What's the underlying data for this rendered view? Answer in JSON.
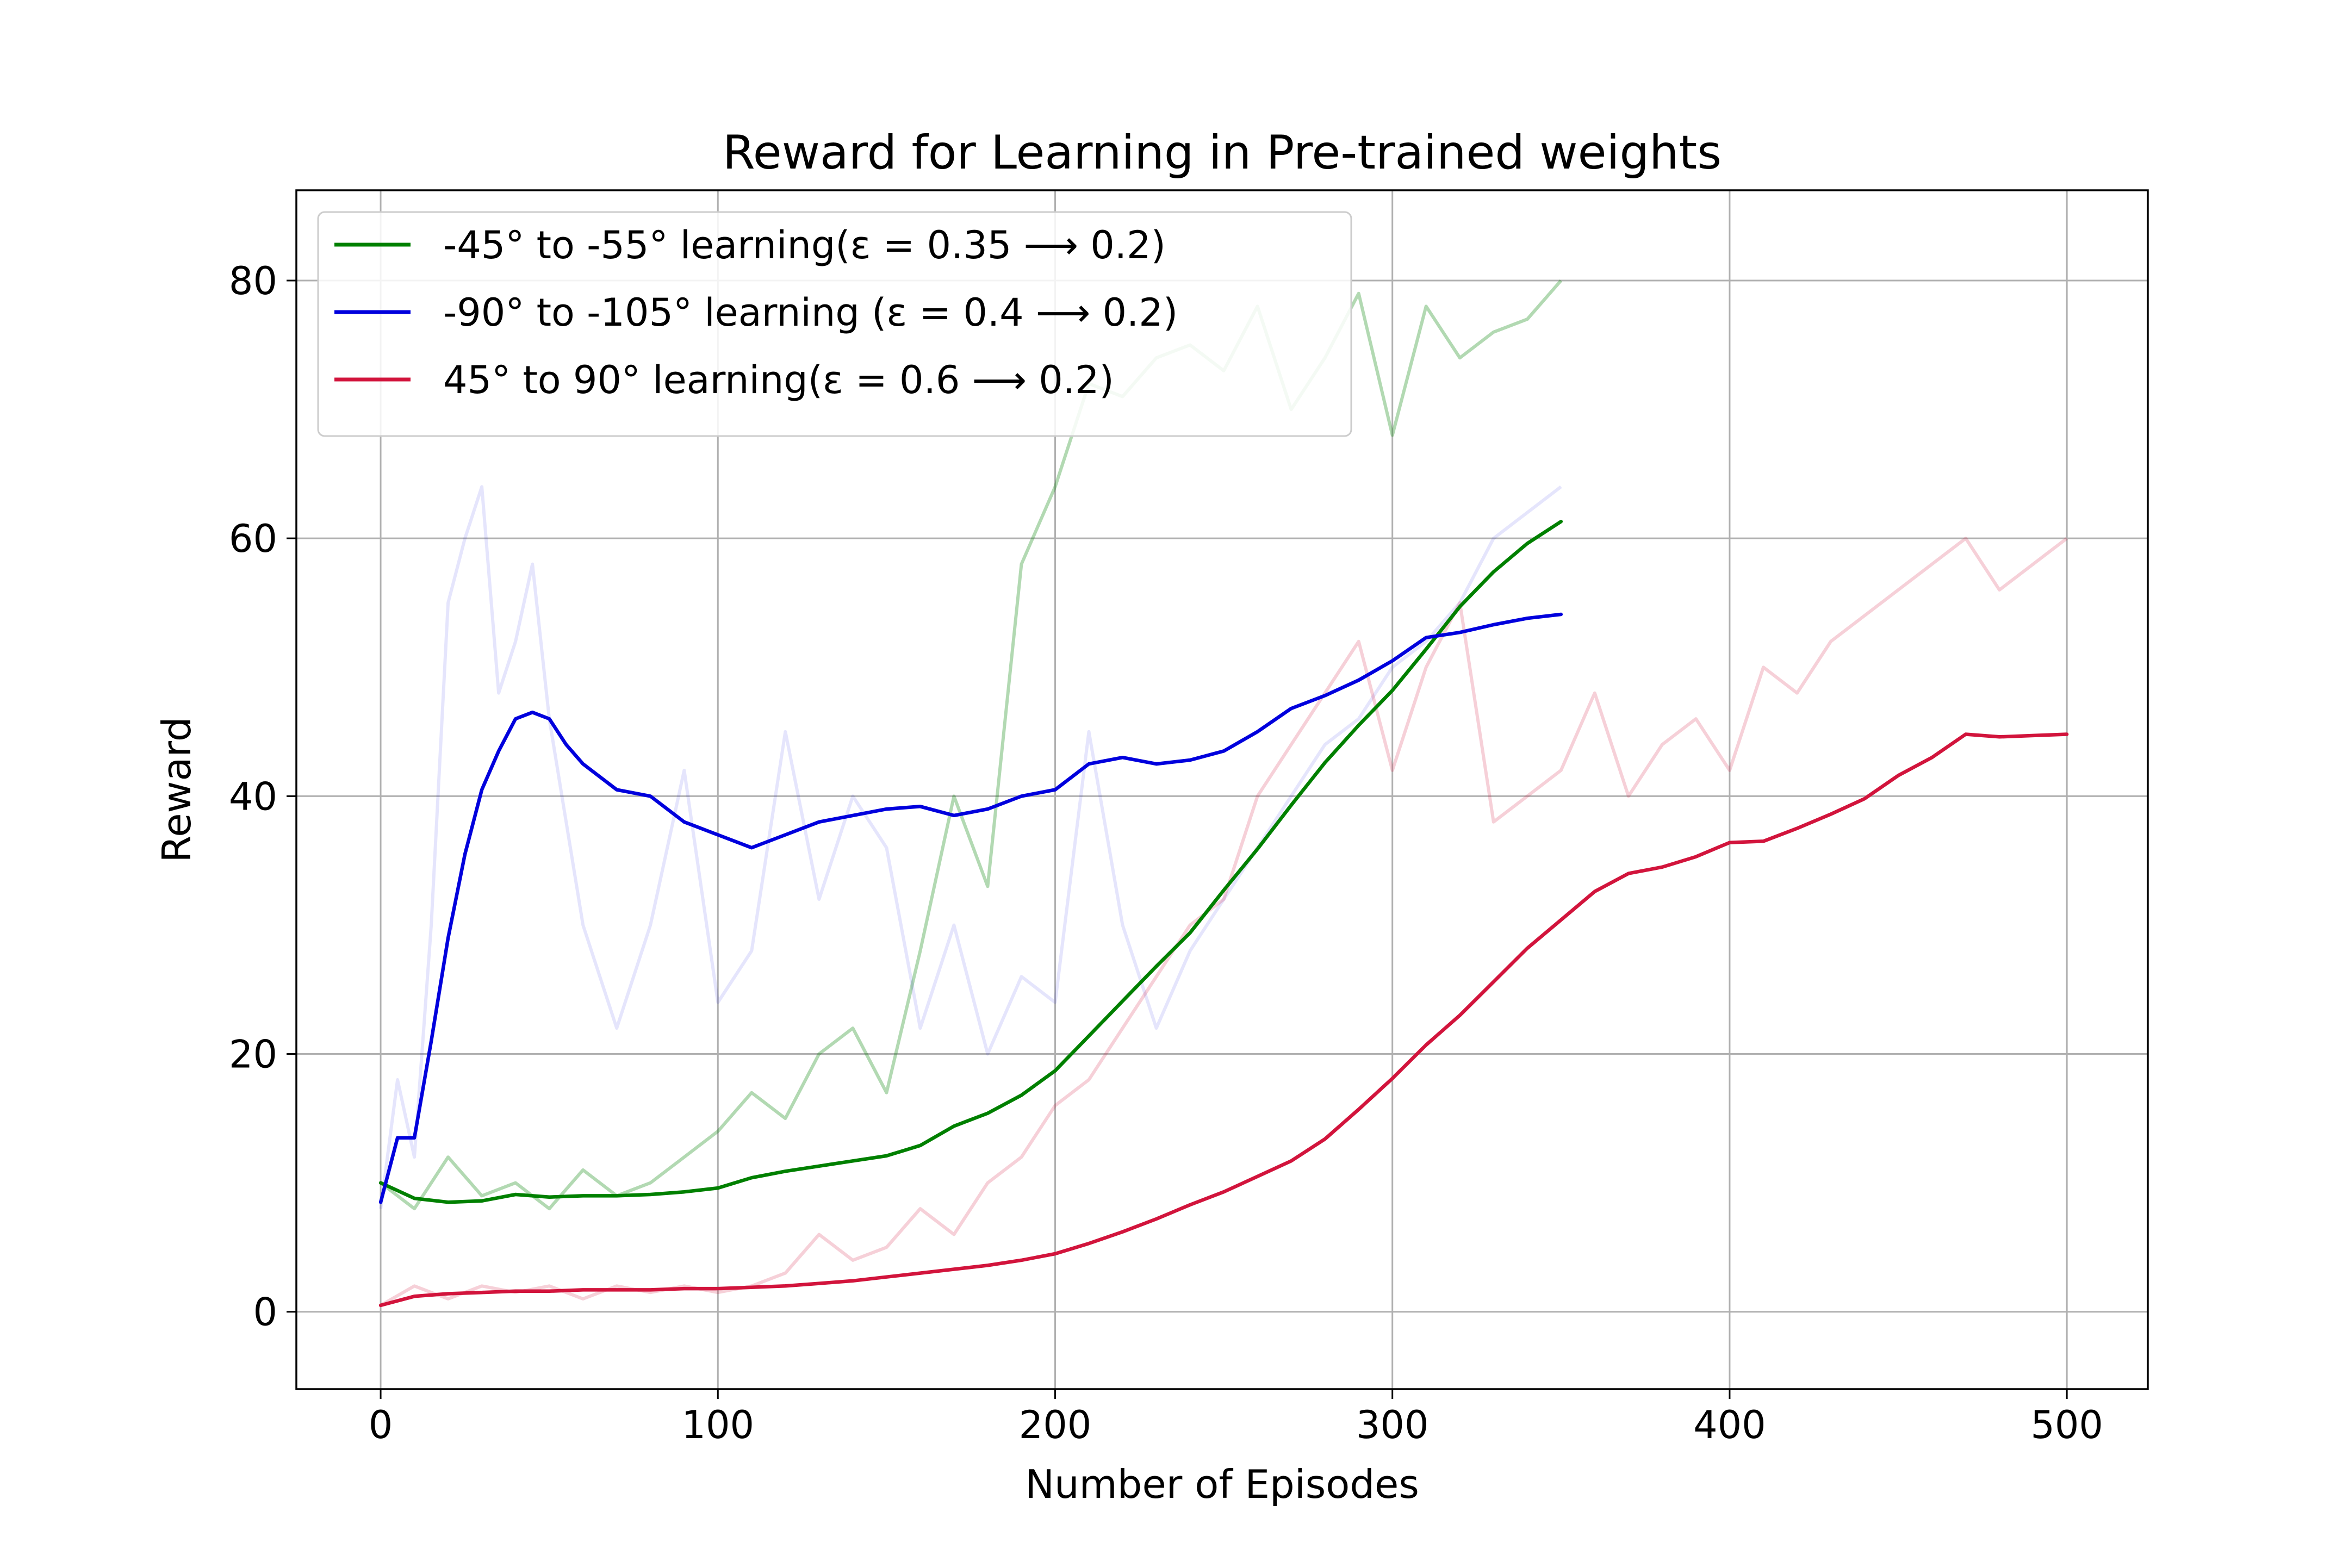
{
  "chart_data": {
    "type": "line",
    "title": "Reward for Learning in Pre-trained weights",
    "xlabel": "Number of Episodes",
    "ylabel": "Reward",
    "xlim": [
      -25,
      524
    ],
    "ylim": [
      -6,
      87
    ],
    "xticks": [
      0,
      100,
      200,
      300,
      400,
      500
    ],
    "yticks": [
      0,
      20,
      40,
      60,
      80
    ],
    "xtick_labels": [
      "0",
      "100",
      "200",
      "300",
      "400",
      "500"
    ],
    "ytick_labels": [
      "0",
      "20",
      "40",
      "60",
      "80"
    ],
    "grid": true,
    "legend_position": "upper-left",
    "series": [
      {
        "name": "-45° to -55° learning(ε = 0.35 ⟶ 0.2)",
        "color": "#008000",
        "raw_alpha": 0.3,
        "x": [
          0,
          10,
          20,
          30,
          40,
          50,
          60,
          70,
          80,
          90,
          100,
          110,
          120,
          130,
          140,
          150,
          160,
          170,
          180,
          190,
          200,
          210,
          220,
          230,
          240,
          250,
          260,
          270,
          280,
          290,
          300,
          310,
          320,
          330,
          340,
          350
        ],
        "values": [
          10,
          8.8,
          8.5,
          8.6,
          9.1,
          8.9,
          9.0,
          9.0,
          9.1,
          9.3,
          9.6,
          10.4,
          10.9,
          11.3,
          11.7,
          12.1,
          12.9,
          14.4,
          15.4,
          16.8,
          18.7,
          21.4,
          24.1,
          26.8,
          29.4,
          32.7,
          35.9,
          39.3,
          42.6,
          45.5,
          48.2,
          51.4,
          54.7,
          57.4,
          59.6,
          61.3
        ],
        "raw_values": [
          10,
          8,
          12,
          9,
          10,
          8,
          11,
          9,
          10,
          12,
          14,
          17,
          15,
          20,
          22,
          17,
          28,
          40,
          33,
          58,
          64,
          72,
          71,
          74,
          75,
          73,
          78,
          70,
          74,
          79,
          68,
          78,
          74,
          76,
          77,
          80
        ]
      },
      {
        "name": "-90° to -105° learning (ε = 0.4 ⟶ 0.2)",
        "color": "#0000dd",
        "raw_alpha": 0.1,
        "x": [
          0,
          5,
          10,
          15,
          20,
          25,
          30,
          35,
          40,
          45,
          50,
          55,
          60,
          70,
          80,
          90,
          100,
          110,
          120,
          130,
          140,
          150,
          160,
          170,
          180,
          190,
          200,
          210,
          220,
          230,
          240,
          250,
          260,
          270,
          280,
          290,
          300,
          310,
          320,
          330,
          340,
          350
        ],
        "values": [
          8.5,
          13.5,
          13.5,
          21,
          29,
          35.5,
          40.5,
          43.5,
          46,
          46.5,
          46,
          44,
          42.5,
          40.5,
          40,
          38,
          37,
          36,
          37,
          38,
          38.5,
          39,
          39.2,
          38.5,
          39,
          40,
          40.5,
          42.5,
          43,
          42.5,
          42.8,
          43.5,
          45,
          46.8,
          47.8,
          49,
          50.5,
          52.3,
          52.7,
          53.3,
          53.8,
          54.1
        ],
        "raw_values": [
          8,
          18,
          12,
          30,
          55,
          60,
          64,
          48,
          52,
          58,
          46,
          38,
          30,
          22,
          30,
          42,
          24,
          28,
          45,
          32,
          40,
          36,
          22,
          30,
          20,
          26,
          24,
          45,
          30,
          22,
          28,
          32,
          36,
          40,
          44,
          46,
          50,
          52,
          55,
          60,
          62,
          64
        ]
      },
      {
        "name": "45° to 90° learning(ε = 0.6 ⟶ 0.2)",
        "color": "#d2143c",
        "raw_alpha": 0.2,
        "x": [
          0,
          10,
          20,
          30,
          40,
          50,
          60,
          70,
          80,
          90,
          100,
          110,
          120,
          130,
          140,
          150,
          160,
          170,
          180,
          190,
          200,
          210,
          220,
          230,
          240,
          250,
          260,
          270,
          280,
          290,
          300,
          310,
          320,
          330,
          340,
          350,
          360,
          370,
          380,
          390,
          400,
          410,
          420,
          430,
          440,
          450,
          460,
          470,
          480,
          490,
          500
        ],
        "values": [
          0.5,
          1.2,
          1.4,
          1.5,
          1.6,
          1.6,
          1.7,
          1.7,
          1.7,
          1.8,
          1.8,
          1.9,
          2.0,
          2.2,
          2.4,
          2.7,
          3.0,
          3.3,
          3.6,
          4.0,
          4.5,
          5.3,
          6.2,
          7.2,
          8.3,
          9.3,
          10.5,
          11.7,
          13.4,
          15.7,
          18.1,
          20.7,
          23.0,
          25.6,
          28.2,
          30.4,
          32.6,
          34.0,
          34.5,
          35.3,
          36.4,
          36.5,
          37.5,
          38.6,
          39.8,
          41.6,
          43.0,
          44.8,
          44.6,
          44.7,
          44.8
        ],
        "raw_values": [
          0.5,
          2,
          1,
          2,
          1.5,
          2,
          1,
          2,
          1.5,
          2,
          1.5,
          2,
          3,
          6,
          4,
          5,
          8,
          6,
          10,
          12,
          16,
          18,
          22,
          26,
          30,
          32,
          40,
          44,
          48,
          52,
          42,
          50,
          55,
          38,
          40,
          42,
          48,
          40,
          44,
          46,
          42,
          50,
          48,
          52,
          54,
          56,
          58,
          60,
          56,
          58,
          60
        ]
      }
    ]
  }
}
